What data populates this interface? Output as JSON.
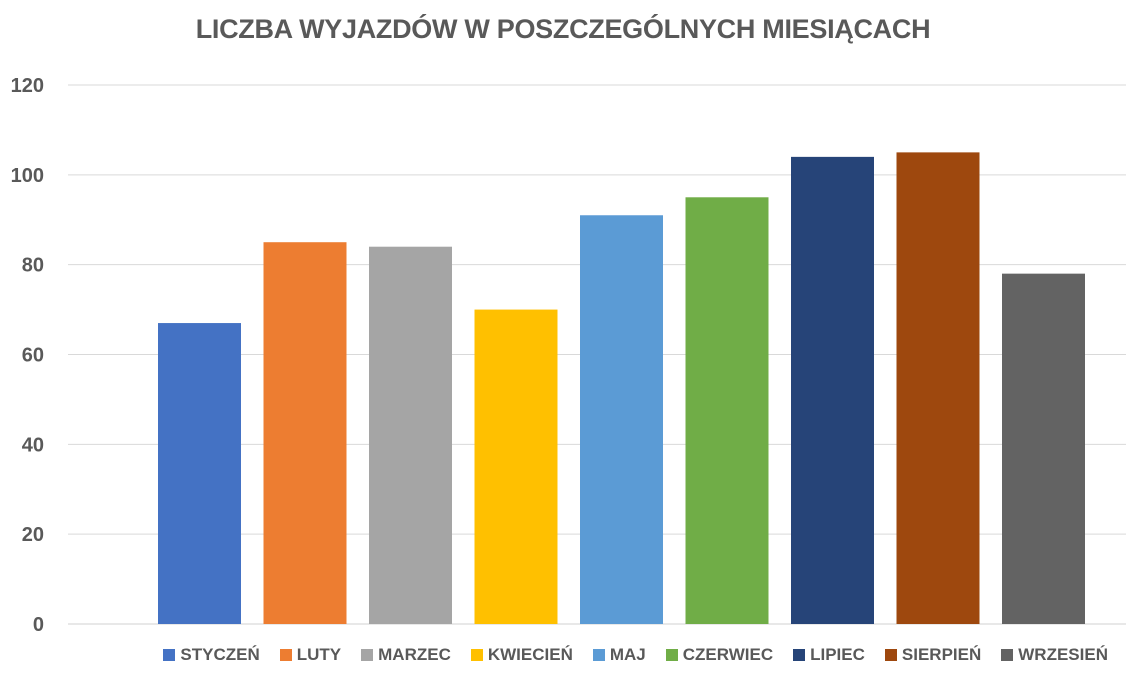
{
  "chart_data": {
    "type": "bar",
    "title": "LICZBA WYJAZDÓW W POSZCZEGÓLNYCH MIESIĄCACH",
    "xlabel": "",
    "ylabel": "",
    "ylim": [
      0,
      120
    ],
    "yticks": [
      "0",
      "20",
      "40",
      "60",
      "80",
      "100",
      "120"
    ],
    "grid": true,
    "legend_position": "bottom",
    "series": [
      {
        "name": "STYCZEŃ",
        "values": [
          67
        ],
        "color": "#4472C4"
      },
      {
        "name": "LUTY",
        "values": [
          85
        ],
        "color": "#ED7D31"
      },
      {
        "name": "MARZEC",
        "values": [
          84
        ],
        "color": "#A5A5A5"
      },
      {
        "name": "KWIECIEŃ",
        "values": [
          70
        ],
        "color": "#FFC000"
      },
      {
        "name": "MAJ",
        "values": [
          91
        ],
        "color": "#5B9BD5"
      },
      {
        "name": "CZERWIEC",
        "values": [
          95
        ],
        "color": "#70AD47"
      },
      {
        "name": "LIPIEC",
        "values": [
          104
        ],
        "color": "#264478"
      },
      {
        "name": "SIERPIEŃ",
        "values": [
          105
        ],
        "color": "#9E480E"
      },
      {
        "name": "WRZESIEŃ",
        "values": [
          78
        ],
        "color": "#636363"
      }
    ]
  }
}
